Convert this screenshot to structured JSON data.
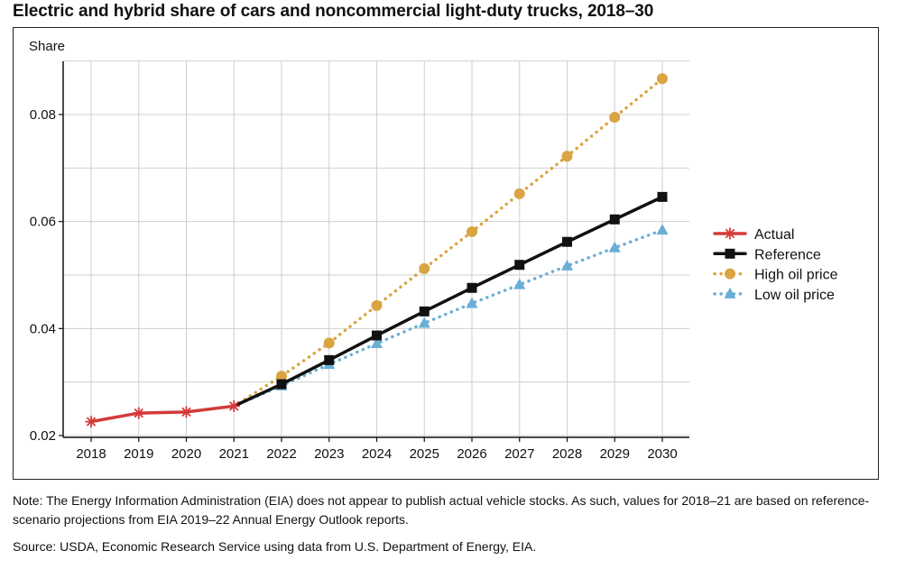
{
  "title": "Electric and hybrid share of cars and noncommercial light-duty trucks, 2018–30",
  "note": "Note: The Energy Information Administration (EIA) does not appear to publish actual vehicle stocks. As such, values for 2018–21 are based on reference-scenario projections from EIA 2019–22 Annual Energy Outlook reports.",
  "source": "Source: USDA, Economic Research Service using data from U.S. Department of Energy, EIA.",
  "chart_data": {
    "type": "line",
    "title": "Electric and hybrid share of cars and noncommercial light-duty trucks, 2018–30",
    "xlabel": "",
    "ylabel": "Share",
    "x": [
      2018,
      2019,
      2020,
      2021,
      2022,
      2023,
      2024,
      2025,
      2026,
      2027,
      2028,
      2029,
      2030
    ],
    "xlim": [
      2018,
      2030
    ],
    "ylim": [
      0.02,
      0.09
    ],
    "yticks": [
      0.02,
      0.04,
      0.06,
      0.08
    ],
    "ytick_labels": [
      "0.02",
      "0.04",
      "0.06",
      "0.08"
    ],
    "grid": true,
    "legend_position": "right",
    "series": [
      {
        "name": "Actual",
        "color": "#d43a3a",
        "marker": "asterisk",
        "style": "solid",
        "points": [
          [
            2018,
            0.0226
          ],
          [
            2019,
            0.0242
          ],
          [
            2020,
            0.0244
          ],
          [
            2021,
            0.0255
          ]
        ]
      },
      {
        "name": "Reference",
        "color": "#111111",
        "marker": "square",
        "style": "solid",
        "points": [
          [
            2021,
            0.0255
          ],
          [
            2022,
            0.0296
          ],
          [
            2023,
            0.0341
          ],
          [
            2024,
            0.0387
          ],
          [
            2025,
            0.0432
          ],
          [
            2026,
            0.0476
          ],
          [
            2027,
            0.0519
          ],
          [
            2028,
            0.0562
          ],
          [
            2029,
            0.0604
          ],
          [
            2030,
            0.0646
          ]
        ]
      },
      {
        "name": "High oil price",
        "color": "#d9a441",
        "marker": "circle",
        "style": "dotted",
        "points": [
          [
            2021,
            0.0255
          ],
          [
            2022,
            0.0311
          ],
          [
            2023,
            0.0373
          ],
          [
            2024,
            0.0443
          ],
          [
            2025,
            0.0512
          ],
          [
            2026,
            0.0581
          ],
          [
            2027,
            0.0652
          ],
          [
            2028,
            0.0722
          ],
          [
            2029,
            0.0795
          ],
          [
            2030,
            0.0867
          ]
        ]
      },
      {
        "name": "Low oil price",
        "color": "#6aaed6",
        "marker": "triangle",
        "style": "dotted",
        "points": [
          [
            2021,
            0.0255
          ],
          [
            2022,
            0.0293
          ],
          [
            2023,
            0.0333
          ],
          [
            2024,
            0.0372
          ],
          [
            2025,
            0.041
          ],
          [
            2026,
            0.0447
          ],
          [
            2027,
            0.0482
          ],
          [
            2028,
            0.0517
          ],
          [
            2029,
            0.0551
          ],
          [
            2030,
            0.0584
          ]
        ]
      }
    ]
  }
}
